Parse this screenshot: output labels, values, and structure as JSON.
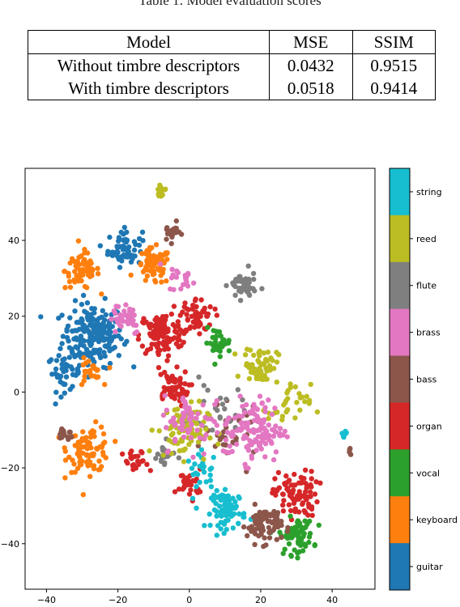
{
  "caption": "Table 1: Model evaluation scores",
  "table": {
    "headers": [
      "Model",
      "MSE",
      "SSIM"
    ],
    "rows": [
      [
        "Without timbre descriptors",
        "0.0432",
        "0.9515"
      ],
      [
        "With timbre descriptors",
        "0.0518",
        "0.9414"
      ]
    ]
  },
  "chart_data": {
    "type": "scatter",
    "title": "",
    "xlabel": "",
    "ylabel": "",
    "xlim": [
      -46,
      52
    ],
    "ylim": [
      -52,
      59
    ],
    "x_ticks": [
      -40,
      -20,
      0,
      20,
      40
    ],
    "y_ticks": [
      -40,
      -20,
      0,
      20,
      40
    ],
    "colorbar": {
      "placement": "right",
      "entries": [
        {
          "label": "string",
          "color": "#17becf"
        },
        {
          "label": "reed",
          "color": "#bcbd22"
        },
        {
          "label": "flute",
          "color": "#7f7f7f"
        },
        {
          "label": "brass",
          "color": "#e377c2"
        },
        {
          "label": "bass",
          "color": "#8c564b"
        },
        {
          "label": "organ",
          "color": "#d62728"
        },
        {
          "label": "vocal",
          "color": "#2ca02c"
        },
        {
          "label": "keyboard",
          "color": "#ff7f0e"
        },
        {
          "label": "guitar",
          "color": "#1f77b4"
        }
      ]
    },
    "clusters": [
      {
        "label": "guitar",
        "color": "#1f77b4",
        "x": -27,
        "y": 15,
        "spread": 7,
        "n": 200
      },
      {
        "label": "guitar",
        "color": "#1f77b4",
        "x": -18,
        "y": 38,
        "spread": 4,
        "n": 60
      },
      {
        "label": "guitar",
        "color": "#1f77b4",
        "x": -35,
        "y": 5,
        "spread": 4,
        "n": 40
      },
      {
        "label": "keyboard",
        "color": "#ff7f0e",
        "x": -30,
        "y": 32,
        "spread": 4,
        "n": 70
      },
      {
        "label": "keyboard",
        "color": "#ff7f0e",
        "x": -10,
        "y": 33,
        "spread": 4,
        "n": 70
      },
      {
        "label": "keyboard",
        "color": "#ff7f0e",
        "x": -28,
        "y": -15,
        "spread": 5,
        "n": 90
      },
      {
        "label": "keyboard",
        "color": "#ff7f0e",
        "x": -28,
        "y": 5,
        "spread": 3,
        "n": 25
      },
      {
        "label": "organ",
        "color": "#d62728",
        "x": -8,
        "y": 15,
        "spread": 5,
        "n": 110
      },
      {
        "label": "organ",
        "color": "#d62728",
        "x": 2,
        "y": 20,
        "spread": 4,
        "n": 60
      },
      {
        "label": "organ",
        "color": "#d62728",
        "x": -5,
        "y": 1,
        "spread": 4,
        "n": 55
      },
      {
        "label": "organ",
        "color": "#d62728",
        "x": 30,
        "y": -27,
        "spread": 5,
        "n": 90
      },
      {
        "label": "organ",
        "color": "#d62728",
        "x": -15,
        "y": -19,
        "spread": 3,
        "n": 25
      },
      {
        "label": "organ",
        "color": "#d62728",
        "x": 0,
        "y": -24,
        "spread": 3,
        "n": 30
      },
      {
        "label": "vocal",
        "color": "#2ca02c",
        "x": 30,
        "y": -38,
        "spread": 4,
        "n": 70
      },
      {
        "label": "vocal",
        "color": "#2ca02c",
        "x": 8,
        "y": 13,
        "spread": 3,
        "n": 30
      },
      {
        "label": "string",
        "color": "#17becf",
        "x": 11,
        "y": -31,
        "spread": 4,
        "n": 80
      },
      {
        "label": "string",
        "color": "#17becf",
        "x": 43,
        "y": -11,
        "spread": 1,
        "n": 6
      },
      {
        "label": "string",
        "color": "#17becf",
        "x": 4,
        "y": -21,
        "spread": 4,
        "n": 25
      },
      {
        "label": "bass",
        "color": "#8c564b",
        "x": 21,
        "y": -35,
        "spread": 4,
        "n": 80
      },
      {
        "label": "bass",
        "color": "#8c564b",
        "x": -5,
        "y": 42,
        "spread": 2,
        "n": 18
      },
      {
        "label": "bass",
        "color": "#8c564b",
        "x": -35,
        "y": -11,
        "spread": 2,
        "n": 15
      },
      {
        "label": "bass",
        "color": "#8c564b",
        "x": 45,
        "y": -15,
        "spread": 1,
        "n": 4
      },
      {
        "label": "bass",
        "color": "#8c564b",
        "x": 12,
        "y": -12,
        "spread": 6,
        "n": 30
      },
      {
        "label": "flute",
        "color": "#7f7f7f",
        "x": 15,
        "y": 28,
        "spread": 3,
        "n": 50
      },
      {
        "label": "flute",
        "color": "#7f7f7f",
        "x": -7,
        "y": -17,
        "spread": 3,
        "n": 20
      },
      {
        "label": "flute",
        "color": "#7f7f7f",
        "x": 8,
        "y": -5,
        "spread": 6,
        "n": 25
      },
      {
        "label": "reed",
        "color": "#bcbd22",
        "x": -8,
        "y": 53,
        "spread": 1,
        "n": 14
      },
      {
        "label": "reed",
        "color": "#bcbd22",
        "x": 20,
        "y": 7,
        "spread": 4,
        "n": 60
      },
      {
        "label": "reed",
        "color": "#bcbd22",
        "x": -2,
        "y": -10,
        "spread": 6,
        "n": 80
      },
      {
        "label": "reed",
        "color": "#bcbd22",
        "x": 28,
        "y": -4,
        "spread": 5,
        "n": 30
      },
      {
        "label": "brass",
        "color": "#e377c2",
        "x": 18,
        "y": -10,
        "spread": 7,
        "n": 130
      },
      {
        "label": "brass",
        "color": "#e377c2",
        "x": -18,
        "y": 20,
        "spread": 4,
        "n": 40
      },
      {
        "label": "brass",
        "color": "#e377c2",
        "x": 0,
        "y": -8,
        "spread": 6,
        "n": 60
      },
      {
        "label": "brass",
        "color": "#e377c2",
        "x": -2,
        "y": 30,
        "spread": 3,
        "n": 20
      }
    ]
  }
}
